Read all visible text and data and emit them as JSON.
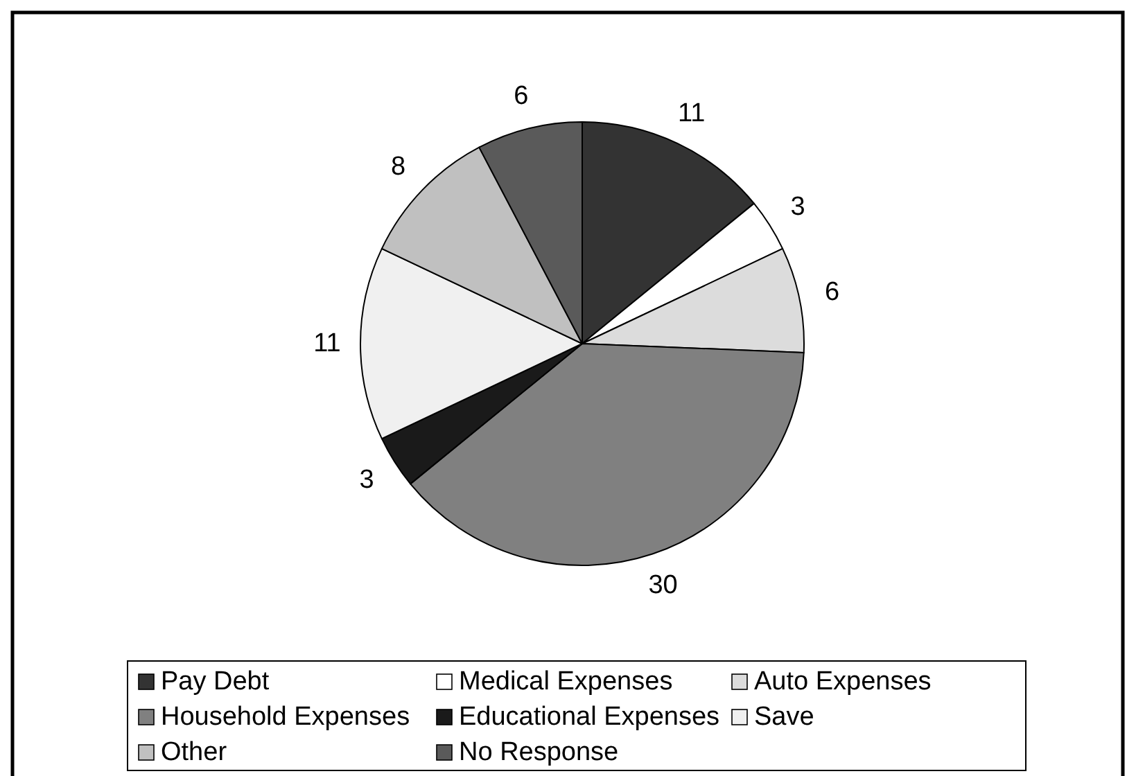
{
  "chart_data": {
    "type": "pie",
    "categories": [
      "Pay Debt",
      "Medical Expenses",
      "Auto Expenses",
      "Household Expenses",
      "Educational Expenses",
      "Save",
      "Other",
      "No Response"
    ],
    "values": [
      11,
      3,
      6,
      30,
      3,
      11,
      8,
      6
    ],
    "colors": [
      "#333333",
      "#ffffff",
      "#dcdcdc",
      "#808080",
      "#1a1a1a",
      "#f0f0f0",
      "#c0c0c0",
      "#5a5a5a"
    ],
    "data_labels": true,
    "legend": "bottom"
  }
}
